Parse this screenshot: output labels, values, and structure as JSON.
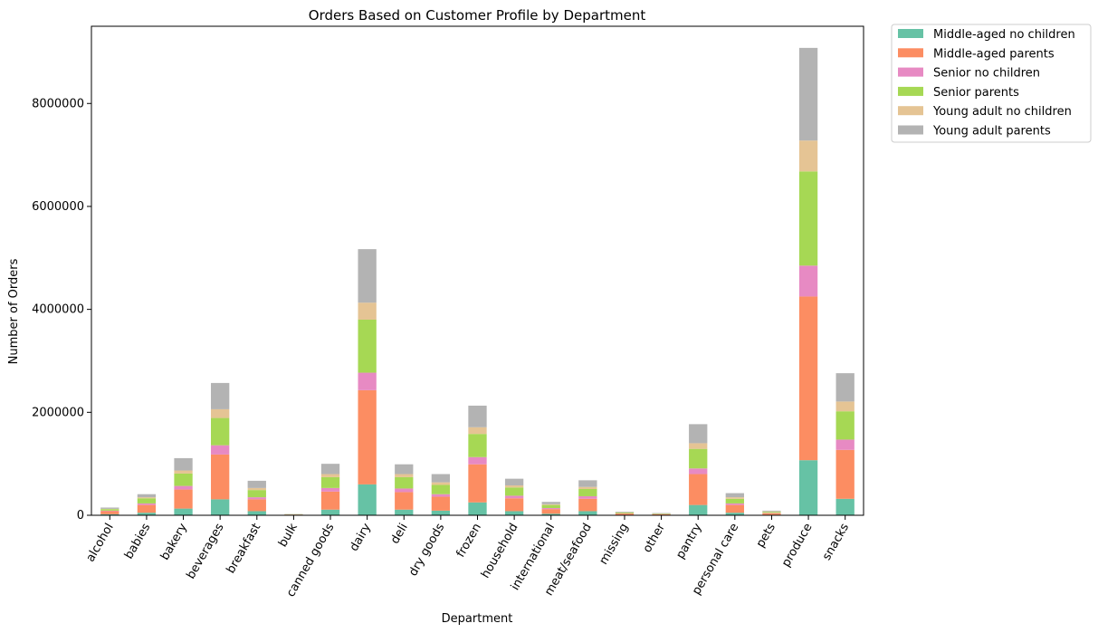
{
  "chart_data": {
    "type": "bar",
    "stacked": true,
    "title": "Orders Based on Customer Profile by Department",
    "xlabel": "Department",
    "ylabel": "Number of Orders",
    "ylim": [
      0,
      9500000
    ],
    "yticks": [
      0,
      2000000,
      4000000,
      6000000,
      8000000
    ],
    "ytick_labels": [
      "0",
      "2000000",
      "4000000",
      "6000000",
      "8000000"
    ],
    "legend_position": "outside top-right",
    "grid": false,
    "categories": [
      "alcohol",
      "babies",
      "bakery",
      "beverages",
      "breakfast",
      "bulk",
      "canned goods",
      "dairy",
      "deli",
      "dry goods",
      "frozen",
      "household",
      "international",
      "meat/seafood",
      "missing",
      "other",
      "pantry",
      "personal care",
      "pets",
      "produce",
      "snacks"
    ],
    "series": [
      {
        "name": "Middle-aged no children",
        "color": "#66c2a5",
        "values": [
          20000,
          50000,
          130000,
          310000,
          80000,
          3000,
          110000,
          600000,
          110000,
          90000,
          250000,
          80000,
          30000,
          80000,
          8000,
          5000,
          200000,
          50000,
          10000,
          1070000,
          320000
        ]
      },
      {
        "name": "Middle-aged parents",
        "color": "#fc8d62",
        "values": [
          60000,
          150000,
          370000,
          870000,
          230000,
          10000,
          350000,
          1830000,
          340000,
          270000,
          740000,
          250000,
          90000,
          240000,
          25000,
          15000,
          600000,
          150000,
          30000,
          3180000,
          950000
        ]
      },
      {
        "name": "Senior no children",
        "color": "#e78ac3",
        "values": [
          10000,
          30000,
          70000,
          180000,
          40000,
          2000,
          70000,
          340000,
          70000,
          50000,
          140000,
          50000,
          20000,
          50000,
          5000,
          3000,
          110000,
          30000,
          7000,
          600000,
          200000
        ]
      },
      {
        "name": "Senior parents",
        "color": "#a6d854",
        "values": [
          30000,
          100000,
          240000,
          530000,
          140000,
          6000,
          210000,
          1030000,
          220000,
          180000,
          450000,
          160000,
          60000,
          140000,
          15000,
          10000,
          380000,
          90000,
          20000,
          1830000,
          550000
        ]
      },
      {
        "name": "Young adult no children",
        "color": "#e5c494",
        "values": [
          5000,
          20000,
          60000,
          170000,
          40000,
          1000,
          60000,
          330000,
          60000,
          50000,
          130000,
          40000,
          15000,
          40000,
          5000,
          2000,
          110000,
          30000,
          8000,
          600000,
          190000
        ]
      },
      {
        "name": "Young adult parents",
        "color": "#b3b3b3",
        "values": [
          25000,
          60000,
          240000,
          510000,
          140000,
          4000,
          200000,
          1040000,
          190000,
          160000,
          420000,
          130000,
          45000,
          130000,
          12000,
          8000,
          370000,
          80000,
          15000,
          1800000,
          550000
        ]
      }
    ]
  }
}
